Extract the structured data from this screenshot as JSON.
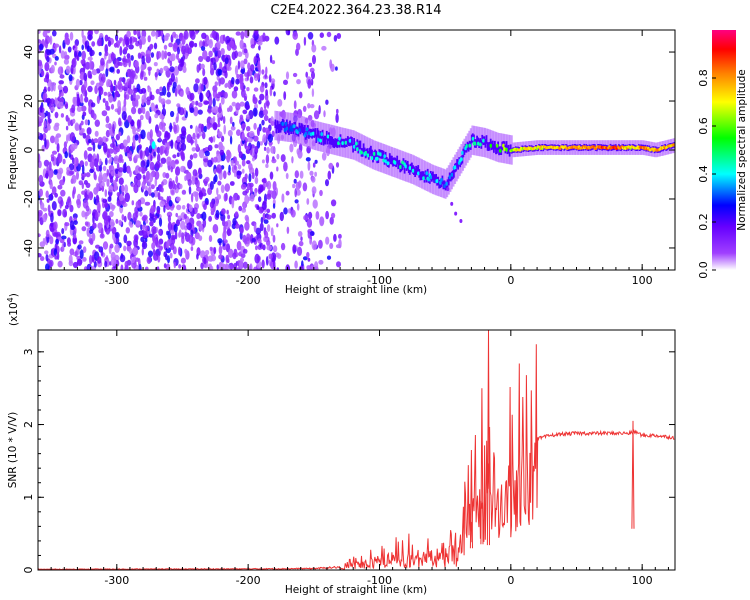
{
  "page": {
    "title": "C2E4.2022.364.23.38.R14"
  },
  "chart_data": [
    {
      "type": "heatmap",
      "name": "spectrogram",
      "title": "C2E4.2022.364.23.38.R14",
      "xlabel": "Height of straight line (km)",
      "ylabel": "Frequency (Hz)",
      "xlim": [
        -360,
        125
      ],
      "ylim": [
        -49,
        49
      ],
      "x_ticks": [
        -300,
        -200,
        -100,
        0,
        100
      ],
      "x_tick_labels": [
        "-300",
        "-200",
        "-100",
        "0",
        "100"
      ],
      "y_ticks": [
        -40,
        -20,
        0,
        20,
        40
      ],
      "y_tick_labels": [
        "-40",
        "-20",
        "0",
        "20",
        "40"
      ],
      "colorbar": {
        "label": "Normalized spectral amplitude",
        "range": [
          0,
          1
        ],
        "ticks": [
          0.0,
          0.2,
          0.4,
          0.6,
          0.8
        ],
        "tick_labels": [
          "0.0",
          "0.2",
          "0.4",
          "0.6",
          "0.8"
        ],
        "colormap": "rainbow (white-violet-blue-cyan-green-yellow-orange-red-pink)"
      },
      "noise_region_x": [
        -360,
        -130
      ],
      "ridge": {
        "x": [
          -180,
          -165,
          -150,
          -135,
          -120,
          -105,
          -90,
          -75,
          -60,
          -50,
          -40,
          -30,
          -20,
          -10,
          0,
          20,
          40,
          60,
          80,
          90,
          100,
          110,
          125
        ],
        "frequency": [
          10,
          9,
          6,
          4,
          2,
          -2,
          -5,
          -8,
          -12,
          -14,
          -5,
          4,
          3,
          1,
          0,
          1,
          1,
          1,
          1,
          1,
          1,
          0,
          2
        ],
        "amplitude": [
          0.3,
          0.35,
          0.4,
          0.45,
          0.45,
          0.45,
          0.45,
          0.45,
          0.4,
          0.35,
          0.4,
          0.45,
          0.5,
          0.6,
          0.7,
          0.75,
          0.8,
          0.85,
          0.9,
          0.75,
          0.85,
          0.8,
          0.8
        ]
      }
    },
    {
      "type": "line",
      "name": "snr",
      "xlabel": "Height of straight line (km)",
      "ylabel": "SNR (10 * V/V)",
      "y_multiplier_label": "(x10",
      "y_multiplier_exponent": "4",
      "xlim": [
        -360,
        125
      ],
      "ylim": [
        0,
        3.3
      ],
      "x_ticks": [
        -300,
        -200,
        -100,
        0,
        100
      ],
      "x_tick_labels": [
        "-300",
        "-200",
        "-100",
        "0",
        "100"
      ],
      "y_ticks": [
        0,
        1,
        2,
        3
      ],
      "y_tick_labels": [
        "0",
        "1",
        "2",
        "3"
      ],
      "color": "#ee3333",
      "envelope": {
        "x": [
          -360,
          -200,
          -150,
          -130,
          -120,
          -110,
          -100,
          -90,
          -80,
          -70,
          -60,
          -50,
          -45,
          -40,
          -35,
          -30,
          -25,
          -20,
          -15,
          -10,
          -5,
          0,
          5,
          10,
          20,
          30,
          40,
          50,
          60,
          70,
          80,
          90,
          95,
          100,
          110,
          125
        ],
        "y": [
          0.01,
          0.015,
          0.02,
          0.04,
          0.1,
          0.15,
          0.2,
          0.25,
          0.28,
          0.3,
          0.3,
          0.3,
          0.35,
          0.45,
          0.7,
          1.0,
          1.15,
          1.2,
          1.1,
          1.3,
          1.45,
          1.5,
          1.6,
          1.7,
          1.8,
          1.85,
          1.87,
          1.88,
          1.88,
          1.88,
          1.88,
          1.88,
          1.9,
          1.85,
          1.85,
          1.82
        ]
      },
      "spikes": [
        {
          "x": -30,
          "y": 1.65
        },
        {
          "x": -22,
          "y": 2.5
        },
        {
          "x": -17,
          "y": 3.3
        },
        {
          "x": 93,
          "y": 2.05
        }
      ]
    }
  ]
}
